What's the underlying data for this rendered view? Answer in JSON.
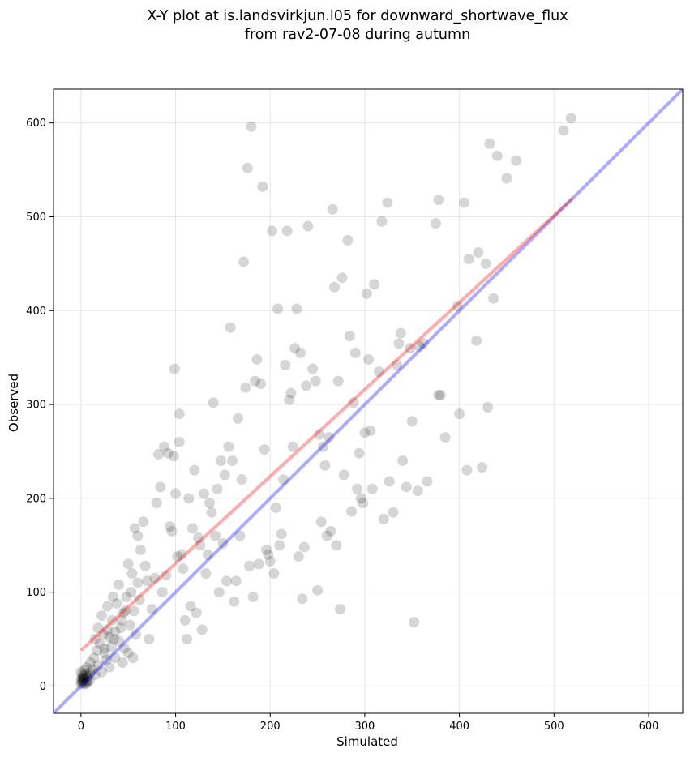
{
  "chart_data": {
    "type": "scatter",
    "title_line1": "X-Y plot at is.landsvirkjun.l05 for downward_shortwave_flux",
    "title_line2": "from rav2-07-08 during autumn",
    "xlabel": "Simulated",
    "ylabel": "Observed",
    "xlim": [
      -29,
      636
    ],
    "ylim": [
      -29,
      636
    ],
    "xticks": [
      0,
      100,
      200,
      300,
      400,
      500,
      600
    ],
    "yticks": [
      0,
      100,
      200,
      300,
      400,
      500,
      600
    ],
    "grid": true,
    "colors": {
      "points": "#000000",
      "identity_line": "#0000ff",
      "fit_line": "#ff0000",
      "grid": "#e6e6e6"
    },
    "identity_line": {
      "x": [
        -29,
        636
      ],
      "y": [
        -29,
        636
      ]
    },
    "fit_line": {
      "x": [
        0,
        520
      ],
      "y": [
        38,
        520
      ]
    },
    "points": [
      [
        0,
        2
      ],
      [
        1,
        4
      ],
      [
        2,
        6
      ],
      [
        3,
        8
      ],
      [
        4,
        3
      ],
      [
        5,
        10
      ],
      [
        6,
        5
      ],
      [
        1,
        12
      ],
      [
        0,
        15
      ],
      [
        3,
        7
      ],
      [
        2,
        9
      ],
      [
        5,
        13
      ],
      [
        7,
        4
      ],
      [
        8,
        11
      ],
      [
        4,
        17
      ],
      [
        6,
        20
      ],
      [
        9,
        6
      ],
      [
        10,
        14
      ],
      [
        2,
        3
      ],
      [
        1,
        8
      ],
      [
        3,
        11
      ],
      [
        0,
        6
      ],
      [
        5,
        2
      ],
      [
        7,
        9
      ],
      [
        10,
        25
      ],
      [
        12,
        18
      ],
      [
        14,
        30
      ],
      [
        15,
        12
      ],
      [
        17,
        38
      ],
      [
        18,
        22
      ],
      [
        20,
        45
      ],
      [
        22,
        15
      ],
      [
        24,
        55
      ],
      [
        25,
        35
      ],
      [
        27,
        28
      ],
      [
        28,
        60
      ],
      [
        30,
        20
      ],
      [
        32,
        42
      ],
      [
        33,
        70
      ],
      [
        35,
        50
      ],
      [
        36,
        30
      ],
      [
        38,
        88
      ],
      [
        40,
        48
      ],
      [
        42,
        62
      ],
      [
        44,
        25
      ],
      [
        45,
        78
      ],
      [
        46,
        40
      ],
      [
        48,
        95
      ],
      [
        50,
        35
      ],
      [
        52,
        65
      ],
      [
        53,
        100
      ],
      [
        55,
        30
      ],
      [
        56,
        80
      ],
      [
        58,
        55
      ],
      [
        60,
        110
      ],
      [
        62,
        92
      ],
      [
        15,
        50
      ],
      [
        18,
        62
      ],
      [
        22,
        75
      ],
      [
        25,
        40
      ],
      [
        28,
        85
      ],
      [
        30,
        52
      ],
      [
        34,
        95
      ],
      [
        36,
        58
      ],
      [
        40,
        108
      ],
      [
        43,
        70
      ],
      [
        47,
        80
      ],
      [
        50,
        130
      ],
      [
        54,
        120
      ],
      [
        57,
        168
      ],
      [
        60,
        160
      ],
      [
        63,
        145
      ],
      [
        66,
        175
      ],
      [
        68,
        128
      ],
      [
        70,
        112
      ],
      [
        72,
        50
      ],
      [
        75,
        82
      ],
      [
        78,
        115
      ],
      [
        80,
        195
      ],
      [
        82,
        247
      ],
      [
        84,
        212
      ],
      [
        86,
        100
      ],
      [
        88,
        255
      ],
      [
        90,
        118
      ],
      [
        92,
        248
      ],
      [
        94,
        170
      ],
      [
        96,
        165
      ],
      [
        98,
        245
      ],
      [
        99,
        338
      ],
      [
        100,
        205
      ],
      [
        102,
        138
      ],
      [
        104,
        290
      ],
      [
        104,
        260
      ],
      [
        106,
        140
      ],
      [
        108,
        125
      ],
      [
        110,
        70
      ],
      [
        112,
        50
      ],
      [
        114,
        200
      ],
      [
        116,
        85
      ],
      [
        118,
        168
      ],
      [
        120,
        230
      ],
      [
        122,
        78
      ],
      [
        124,
        158
      ],
      [
        126,
        150
      ],
      [
        128,
        60
      ],
      [
        130,
        205
      ],
      [
        132,
        120
      ],
      [
        134,
        140
      ],
      [
        136,
        195
      ],
      [
        138,
        185
      ],
      [
        140,
        302
      ],
      [
        142,
        160
      ],
      [
        144,
        210
      ],
      [
        146,
        100
      ],
      [
        148,
        240
      ],
      [
        150,
        152
      ],
      [
        152,
        225
      ],
      [
        154,
        112
      ],
      [
        156,
        255
      ],
      [
        158,
        382
      ],
      [
        160,
        240
      ],
      [
        162,
        90
      ],
      [
        164,
        112
      ],
      [
        166,
        285
      ],
      [
        168,
        160
      ],
      [
        170,
        220
      ],
      [
        172,
        452
      ],
      [
        174,
        318
      ],
      [
        176,
        552
      ],
      [
        178,
        128
      ],
      [
        180,
        596
      ],
      [
        182,
        95
      ],
      [
        184,
        325
      ],
      [
        186,
        348
      ],
      [
        188,
        130
      ],
      [
        190,
        322
      ],
      [
        192,
        532
      ],
      [
        194,
        252
      ],
      [
        196,
        145
      ],
      [
        198,
        140
      ],
      [
        200,
        133
      ],
      [
        202,
        485
      ],
      [
        204,
        120
      ],
      [
        206,
        190
      ],
      [
        208,
        402
      ],
      [
        210,
        150
      ],
      [
        212,
        162
      ],
      [
        214,
        220
      ],
      [
        216,
        342
      ],
      [
        218,
        485
      ],
      [
        220,
        305
      ],
      [
        222,
        312
      ],
      [
        224,
        255
      ],
      [
        226,
        360
      ],
      [
        228,
        402
      ],
      [
        230,
        138
      ],
      [
        232,
        355
      ],
      [
        234,
        93
      ],
      [
        236,
        148
      ],
      [
        238,
        320
      ],
      [
        240,
        490
      ],
      [
        245,
        338
      ],
      [
        248,
        325
      ],
      [
        250,
        102
      ],
      [
        252,
        268
      ],
      [
        254,
        175
      ],
      [
        256,
        255
      ],
      [
        258,
        235
      ],
      [
        260,
        160
      ],
      [
        262,
        265
      ],
      [
        264,
        165
      ],
      [
        266,
        508
      ],
      [
        268,
        425
      ],
      [
        270,
        150
      ],
      [
        272,
        325
      ],
      [
        274,
        82
      ],
      [
        276,
        435
      ],
      [
        278,
        225
      ],
      [
        282,
        475
      ],
      [
        284,
        373
      ],
      [
        286,
        186
      ],
      [
        288,
        302
      ],
      [
        290,
        355
      ],
      [
        292,
        210
      ],
      [
        294,
        248
      ],
      [
        296,
        200
      ],
      [
        298,
        195
      ],
      [
        300,
        270
      ],
      [
        302,
        418
      ],
      [
        304,
        348
      ],
      [
        306,
        272
      ],
      [
        308,
        210
      ],
      [
        310,
        428
      ],
      [
        315,
        335
      ],
      [
        318,
        495
      ],
      [
        320,
        178
      ],
      [
        324,
        515
      ],
      [
        326,
        218
      ],
      [
        330,
        185
      ],
      [
        334,
        342
      ],
      [
        336,
        365
      ],
      [
        338,
        376
      ],
      [
        340,
        240
      ],
      [
        344,
        212
      ],
      [
        348,
        360
      ],
      [
        350,
        282
      ],
      [
        352,
        68
      ],
      [
        356,
        208
      ],
      [
        358,
        362
      ],
      [
        362,
        365
      ],
      [
        366,
        218
      ],
      [
        375,
        493
      ],
      [
        378,
        518
      ],
      [
        380,
        310
      ],
      [
        385,
        265
      ],
      [
        398,
        405
      ],
      [
        400,
        290
      ],
      [
        405,
        515
      ],
      [
        408,
        230
      ],
      [
        410,
        455
      ],
      [
        420,
        462
      ],
      [
        424,
        233
      ],
      [
        428,
        450
      ],
      [
        430,
        297
      ],
      [
        432,
        578
      ],
      [
        436,
        413
      ],
      [
        440,
        565
      ],
      [
        450,
        541
      ],
      [
        460,
        560
      ],
      [
        510,
        592
      ],
      [
        518,
        605
      ],
      [
        418,
        368
      ],
      [
        378,
        310
      ]
    ]
  }
}
